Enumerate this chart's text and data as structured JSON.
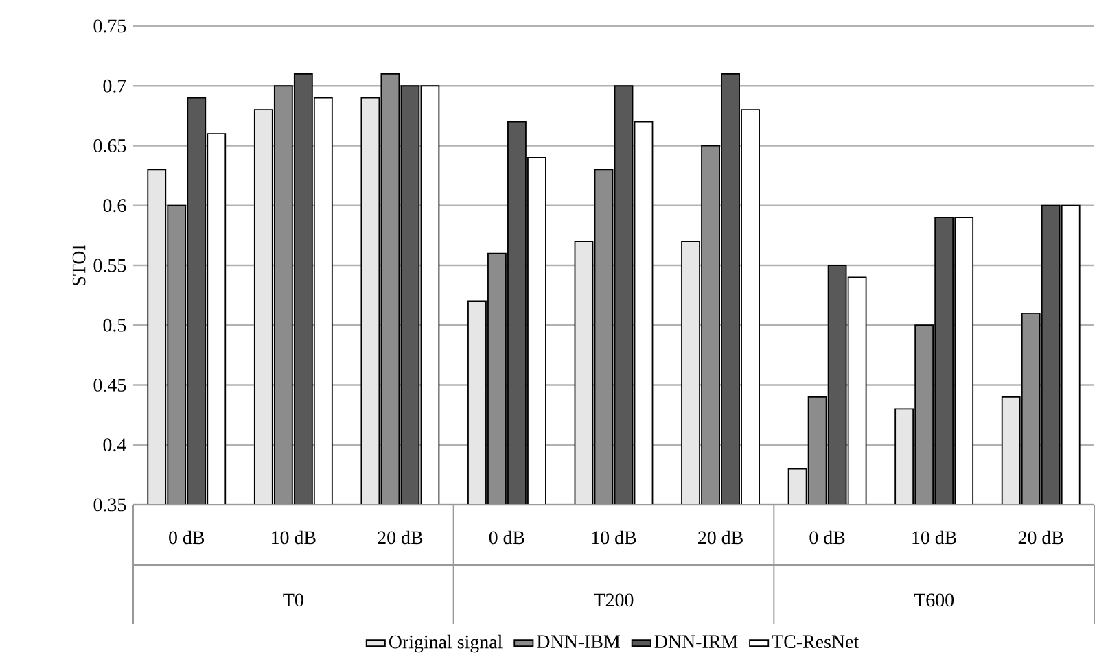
{
  "chart_data": {
    "type": "bar",
    "categories": [
      "0 dB",
      "10 dB",
      "20 dB",
      "0 dB",
      "10 dB",
      "20 dB",
      "0 dB",
      "10 dB",
      "20 dB"
    ],
    "annotations": [
      "T0",
      "T200",
      "T600"
    ],
    "ylabel": "STOI",
    "ylim": [
      0.35,
      0.75
    ],
    "yticks": [
      0.35,
      0.4,
      0.45,
      0.5,
      0.55,
      0.6,
      0.65,
      0.7,
      0.75
    ],
    "grid": "y",
    "legend": "bottom",
    "series": [
      {
        "name": "Original signal",
        "color": "#e6e6e6",
        "values": [
          0.63,
          0.68,
          0.69,
          0.52,
          0.57,
          0.57,
          0.38,
          0.43,
          0.44
        ]
      },
      {
        "name": "DNN-IBM",
        "color": "#8c8c8c",
        "values": [
          0.6,
          0.7,
          0.71,
          0.56,
          0.63,
          0.65,
          0.44,
          0.5,
          0.51
        ]
      },
      {
        "name": "DNN-IRM",
        "color": "#595959",
        "values": [
          0.69,
          0.71,
          0.7,
          0.67,
          0.7,
          0.71,
          0.55,
          0.59,
          0.6
        ]
      },
      {
        "name": "TC-ResNet",
        "color": "#ffffff",
        "values": [
          0.66,
          0.69,
          0.7,
          0.64,
          0.67,
          0.68,
          0.54,
          0.59,
          0.6
        ]
      }
    ]
  }
}
